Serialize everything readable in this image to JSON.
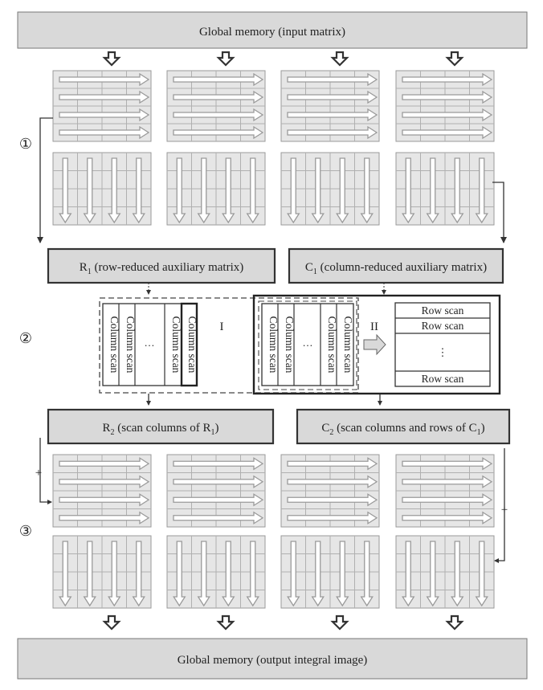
{
  "global_memory_top": "Global memory (input matrix)",
  "global_memory_bottom": "Global memory (output integral image)",
  "step_markers": [
    "①",
    "②",
    "③"
  ],
  "r1": {
    "letter": "R",
    "sub": "1",
    "rest": " (row-reduced auxiliary matrix)"
  },
  "c1": {
    "letter": "C",
    "sub": "1",
    "rest": " (column-reduced auxiliary matrix)"
  },
  "r2": {
    "pre": "R",
    "sub1": "2",
    "mid": "  (scan columns of R",
    "sub2": "1",
    "post": ")"
  },
  "c2": {
    "pre": "C",
    "sub1": "2",
    "mid": "  (scan columns  and rows of C",
    "sub2": "1",
    "post": ")"
  },
  "column_scan_label": "Column scan",
  "row_scan_label": "Row scan",
  "ellipsis": "…",
  "vertical_ellipsis": "⋮",
  "section_one_label": "I",
  "section_two_label": "II",
  "plus_sign": "+",
  "colors": {
    "box_fill": "#d9d9d9",
    "grid_fill": "#e6e6e6",
    "line": "#5a5a5a",
    "arrow": "#9a9a9a"
  }
}
